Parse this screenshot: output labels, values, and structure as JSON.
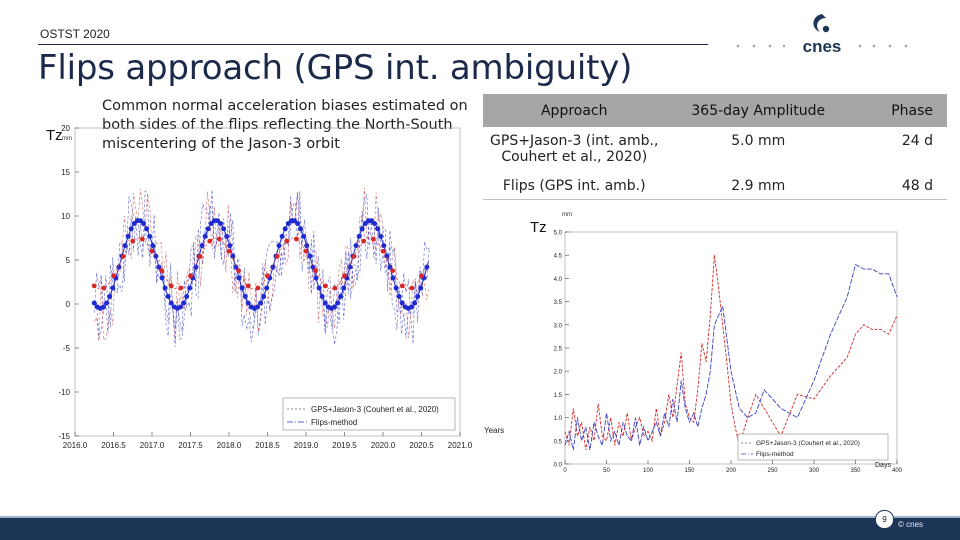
{
  "header": {
    "conference": "OSTST 2020",
    "title": "Flips approach (GPS int. ambiguity)",
    "logo_text": "cnes"
  },
  "caption": "Common normal acceleration biases estimated on both sides of the flips reflecting the North-South miscentering of the Jason-3 orbit",
  "table": {
    "headers": [
      "Approach",
      "365-day Amplitude",
      "Phase"
    ],
    "rows": [
      [
        "GPS+Jason-3 (int. amb., Couhert et al., 2020)",
        "5.0 mm",
        "24 d"
      ],
      [
        "Flips (GPS int. amb.)",
        "2.9 mm",
        "48 d"
      ]
    ]
  },
  "footer": {
    "page_number": "9",
    "copyright": "© cnes"
  },
  "colors": {
    "title": "#1b2a4a",
    "table_header": "#a6a6a6",
    "footer": "#1d3557",
    "blue_series": "#1f2bd0",
    "red_series": "#d62828"
  },
  "chart_data": [
    {
      "type": "line",
      "ylabel": "Tz",
      "yunit": "mm",
      "xlabel": "Years",
      "xlim": [
        2016.0,
        2021.0
      ],
      "ylim": [
        -15,
        20
      ],
      "xticks": [
        "2016.0",
        "2016.5",
        "2017.0",
        "2017.5",
        "2018.0",
        "2018.5",
        "2019.0",
        "2019.5",
        "2020.0",
        "2020.5",
        "2021.0"
      ],
      "yticks": [
        "-15",
        "-10",
        "-5",
        "0",
        "5",
        "10",
        "15",
        "20"
      ],
      "legend": [
        "GPS+Jason-3 (Couhert et al., 2020)",
        "Flips-method"
      ],
      "series": [
        {
          "name": "GPS+Jason-3 (Couhert et al., 2020)",
          "model": "sinusoid",
          "offset": 4.5,
          "amplitude": 5.0,
          "period_years": 1.0,
          "x_start": 2016.25,
          "x_end": 2020.6
        },
        {
          "name": "Flips-method",
          "model": "sinusoid",
          "offset": 4.0,
          "amplitude": 2.9,
          "period_years": 1.0,
          "x_start": 2016.25,
          "x_end": 2020.6
        }
      ]
    },
    {
      "type": "line",
      "ylabel": "Tz",
      "yunit": "mm",
      "xlabel": "Days",
      "xlim": [
        0,
        400
      ],
      "ylim": [
        0.0,
        5.0
      ],
      "xticks": [
        "0",
        "50",
        "100",
        "150",
        "200",
        "250",
        "300",
        "350",
        "400"
      ],
      "yticks": [
        "0.0",
        "0.5",
        "1.0",
        "1.5",
        "2.0",
        "2.5",
        "3.0",
        "3.5",
        "4.0",
        "4.5",
        "5.0"
      ],
      "legend": [
        "GPS+Jason-3 (Couhert et al., 2020)",
        "Flips-method"
      ],
      "series": [
        {
          "name": "GPS+Jason-3 (Couhert et al., 2020)",
          "x": [
            0,
            5,
            10,
            15,
            20,
            25,
            30,
            35,
            40,
            45,
            50,
            55,
            60,
            65,
            70,
            75,
            80,
            85,
            90,
            95,
            100,
            105,
            110,
            115,
            120,
            125,
            130,
            135,
            140,
            145,
            150,
            155,
            160,
            165,
            170,
            175,
            180,
            185,
            190,
            195,
            200,
            205,
            210,
            220,
            230,
            240,
            260,
            280,
            300,
            320,
            340,
            350,
            360,
            370,
            380,
            390,
            400
          ],
          "y": [
            0.7,
            0.4,
            1.2,
            0.6,
            0.9,
            0.3,
            0.8,
            0.5,
            1.3,
            0.6,
            0.5,
            1.0,
            0.4,
            0.9,
            0.6,
            1.1,
            0.5,
            0.8,
            1.0,
            0.6,
            0.7,
            0.5,
            1.2,
            0.6,
            0.9,
            1.5,
            1.0,
            1.7,
            2.4,
            1.3,
            1.0,
            0.9,
            1.6,
            2.6,
            2.2,
            3.2,
            4.5,
            3.8,
            3.0,
            2.2,
            1.3,
            0.8,
            0.4,
            1.0,
            1.5,
            1.2,
            0.6,
            1.5,
            1.4,
            1.9,
            2.3,
            2.8,
            3.0,
            2.9,
            2.9,
            2.8,
            3.2
          ]
        },
        {
          "name": "Flips-method",
          "x": [
            0,
            5,
            10,
            15,
            20,
            25,
            30,
            35,
            40,
            45,
            50,
            55,
            60,
            65,
            70,
            75,
            80,
            85,
            90,
            95,
            100,
            105,
            110,
            115,
            120,
            125,
            130,
            135,
            140,
            145,
            150,
            155,
            160,
            165,
            170,
            175,
            180,
            185,
            190,
            200,
            210,
            220,
            230,
            240,
            260,
            280,
            300,
            320,
            340,
            350,
            360,
            370,
            380,
            390,
            400
          ],
          "y": [
            0.4,
            0.7,
            0.3,
            1.0,
            0.5,
            0.8,
            0.3,
            0.9,
            0.6,
            0.4,
            1.1,
            0.5,
            0.7,
            0.4,
            0.9,
            0.6,
            0.5,
            1.0,
            0.4,
            0.8,
            0.5,
            0.7,
            0.9,
            0.6,
            1.1,
            0.8,
            1.4,
            0.9,
            1.8,
            1.2,
            0.9,
            1.1,
            0.8,
            1.2,
            1.5,
            2.0,
            3.0,
            3.2,
            3.4,
            2.0,
            1.2,
            1.0,
            1.1,
            1.6,
            1.2,
            1.0,
            1.8,
            2.8,
            3.6,
            4.3,
            4.2,
            4.2,
            4.1,
            4.1,
            3.6
          ]
        }
      ]
    }
  ]
}
